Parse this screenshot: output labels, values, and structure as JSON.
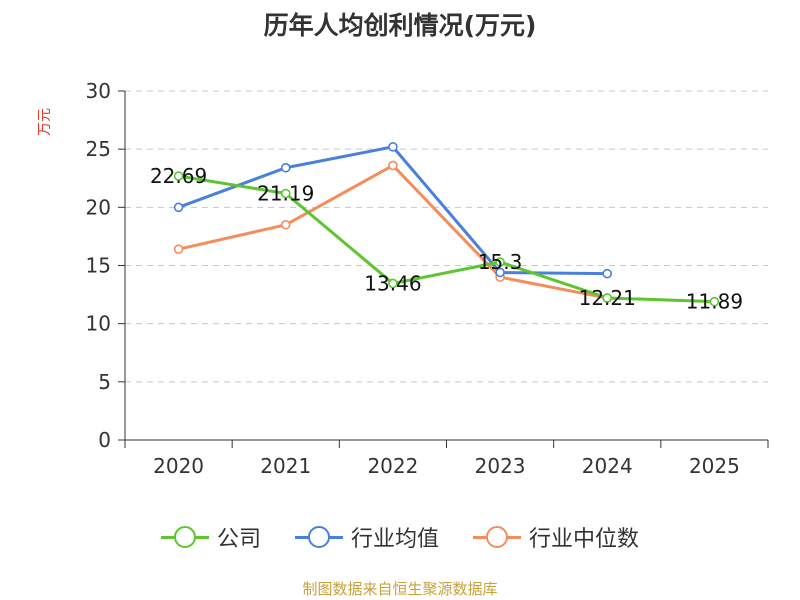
{
  "title": "历年人均创利情况(万元)",
  "source": "制图数据来自恒生聚源数据库",
  "chart_data": {
    "type": "line",
    "title": "历年人均创利情况(万元)",
    "ylabel": "万元",
    "xlabel": "",
    "ylim": [
      0,
      30
    ],
    "yticks": [
      0,
      5,
      10,
      15,
      20,
      25,
      30
    ],
    "categories": [
      "2020",
      "2021",
      "2022",
      "2023",
      "2024",
      "2025"
    ],
    "grid": true,
    "legend_position": "bottom",
    "series": [
      {
        "name": "公司",
        "color": "#5cc52f",
        "values": [
          22.69,
          21.19,
          13.46,
          15.3,
          12.21,
          11.89
        ],
        "labels": [
          "22.69",
          "21.19",
          "13.46",
          "15.3",
          "12.21",
          "11.89"
        ]
      },
      {
        "name": "行业均值",
        "color": "#4a7fdc",
        "values": [
          20.0,
          23.4,
          25.2,
          14.4,
          14.3,
          null
        ]
      },
      {
        "name": "行业中位数",
        "color": "#f58d5a",
        "values": [
          16.4,
          18.5,
          23.6,
          14.0,
          12.2,
          null
        ]
      }
    ]
  }
}
